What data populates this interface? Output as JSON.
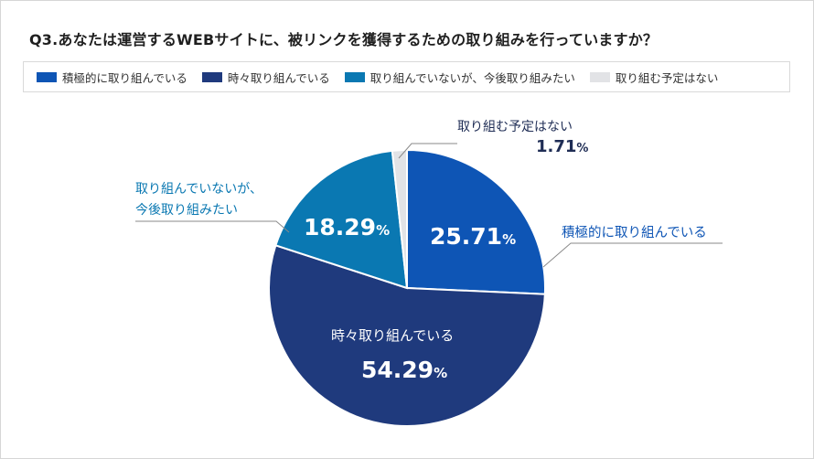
{
  "title": "Q3.あなたは運営するWEBサイトに、被リンクを獲得するための取り組みを行っていますか？",
  "chart_data": {
    "type": "pie",
    "title": "Q3.あなたは運営するWEBサイトに、被リンクを獲得するための取り組みを行っていますか？",
    "legend_position": "top",
    "slices": [
      {
        "label": "積極的に取り組んでいる",
        "value": 25.71,
        "display": "25.71",
        "color": "#0e55b5"
      },
      {
        "label": "時々取り組んでいる",
        "value": 54.29,
        "display": "54.29",
        "color": "#1f3a7d"
      },
      {
        "label": "取り組んでいないが、今後取り組みたい",
        "value": 18.29,
        "display": "18.29",
        "color": "#0a78b2"
      },
      {
        "label": "取り組む予定はない",
        "value": 1.71,
        "display": "1.71",
        "color": "#e2e3e6"
      }
    ],
    "percent_sign": "%"
  },
  "callouts": {
    "right_label": "積極的に取り組んでいる",
    "left_label_line1": "取り組んでいないが、",
    "left_label_line2": "今後取り組みたい",
    "top_label": "取り組む予定はない",
    "top_value": "1.71",
    "inner_label": "時々取り組んでいる"
  }
}
